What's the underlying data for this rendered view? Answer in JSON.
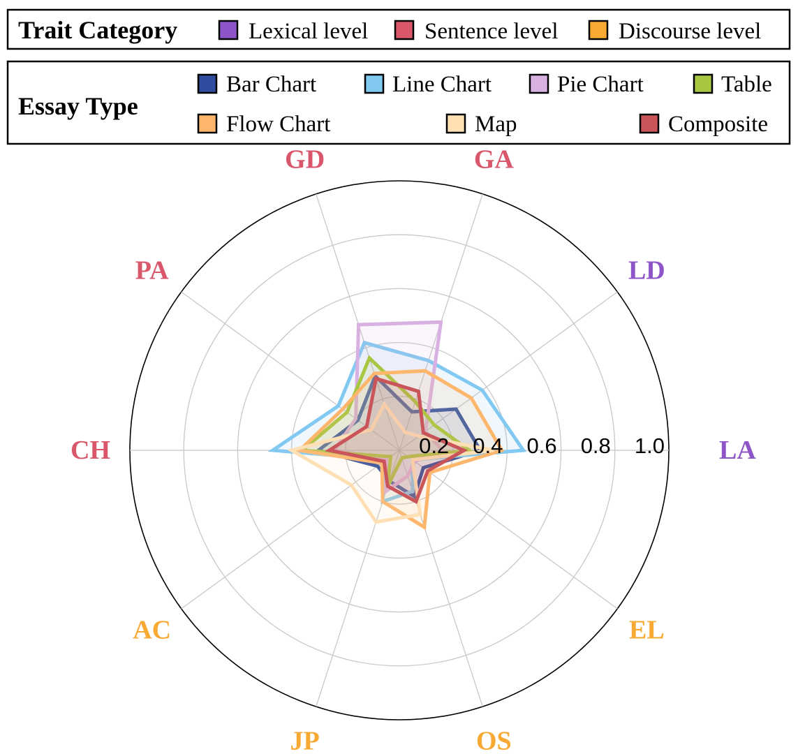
{
  "trait_legend": {
    "title": "Trait Category",
    "entries": [
      {
        "label": "Lexical level",
        "color": "#8e55c8"
      },
      {
        "label": "Sentence level",
        "color": "#d9576a"
      },
      {
        "label": "Discourse level",
        "color": "#f8a934"
      }
    ]
  },
  "type_legend": {
    "title": "Essay Type"
  },
  "chart_data": {
    "type": "radar",
    "r_range": [
      0,
      1.0
    ],
    "r_ticks": [
      "0.2",
      "0.4",
      "0.6",
      "0.8",
      "1.0"
    ],
    "grid": true,
    "legend_position": "top",
    "axes": [
      {
        "label": "LA",
        "category": "Lexical level",
        "color": "#8e55c8"
      },
      {
        "label": "LD",
        "category": "Lexical level",
        "color": "#8e55c8"
      },
      {
        "label": "GA",
        "category": "Sentence level",
        "color": "#d9576a"
      },
      {
        "label": "GD",
        "category": "Sentence level",
        "color": "#d9576a"
      },
      {
        "label": "PA",
        "category": "Sentence level",
        "color": "#d9576a"
      },
      {
        "label": "CH",
        "category": "Sentence level",
        "color": "#d9576a"
      },
      {
        "label": "AC",
        "category": "Discourse level",
        "color": "#f8a934"
      },
      {
        "label": "JP",
        "category": "Discourse level",
        "color": "#f8a934"
      },
      {
        "label": "OS",
        "category": "Discourse level",
        "color": "#f8a934"
      },
      {
        "label": "EL",
        "category": "Discourse level",
        "color": "#f8a934"
      }
    ],
    "series": [
      {
        "name": "Bar Chart",
        "color": "#2f4c9e",
        "values": [
          0.3,
          0.26,
          0.15,
          0.29,
          0.19,
          0.3,
          0.1,
          0.12,
          0.18,
          0.11
        ]
      },
      {
        "name": "Line Chart",
        "color": "#82c9f2",
        "values": [
          0.46,
          0.38,
          0.35,
          0.42,
          0.28,
          0.47,
          0.06,
          0.2,
          0.16,
          0.06
        ]
      },
      {
        "name": "Pie Chart",
        "color": "#d8b1e2",
        "values": [
          0.16,
          0.12,
          0.5,
          0.49,
          0.2,
          0.24,
          0.06,
          0.16,
          0.1,
          0.07
        ]
      },
      {
        "name": "Table",
        "color": "#a7c642",
        "values": [
          0.26,
          0.16,
          0.19,
          0.36,
          0.24,
          0.36,
          0.04,
          0.14,
          0.03,
          0.04
        ]
      },
      {
        "name": "Flow Chart",
        "color": "#fdb66c",
        "values": [
          0.38,
          0.33,
          0.31,
          0.3,
          0.26,
          0.37,
          0.08,
          0.2,
          0.3,
          0.14
        ]
      },
      {
        "name": "Map",
        "color": "#fee0b4",
        "values": [
          0.35,
          0.09,
          0.07,
          0.18,
          0.13,
          0.4,
          0.22,
          0.28,
          0.25,
          0.06
        ]
      },
      {
        "name": "Composite",
        "color": "#c9555a",
        "values": [
          0.24,
          0.11,
          0.23,
          0.28,
          0.15,
          0.26,
          0.07,
          0.14,
          0.2,
          0.13
        ]
      }
    ]
  }
}
